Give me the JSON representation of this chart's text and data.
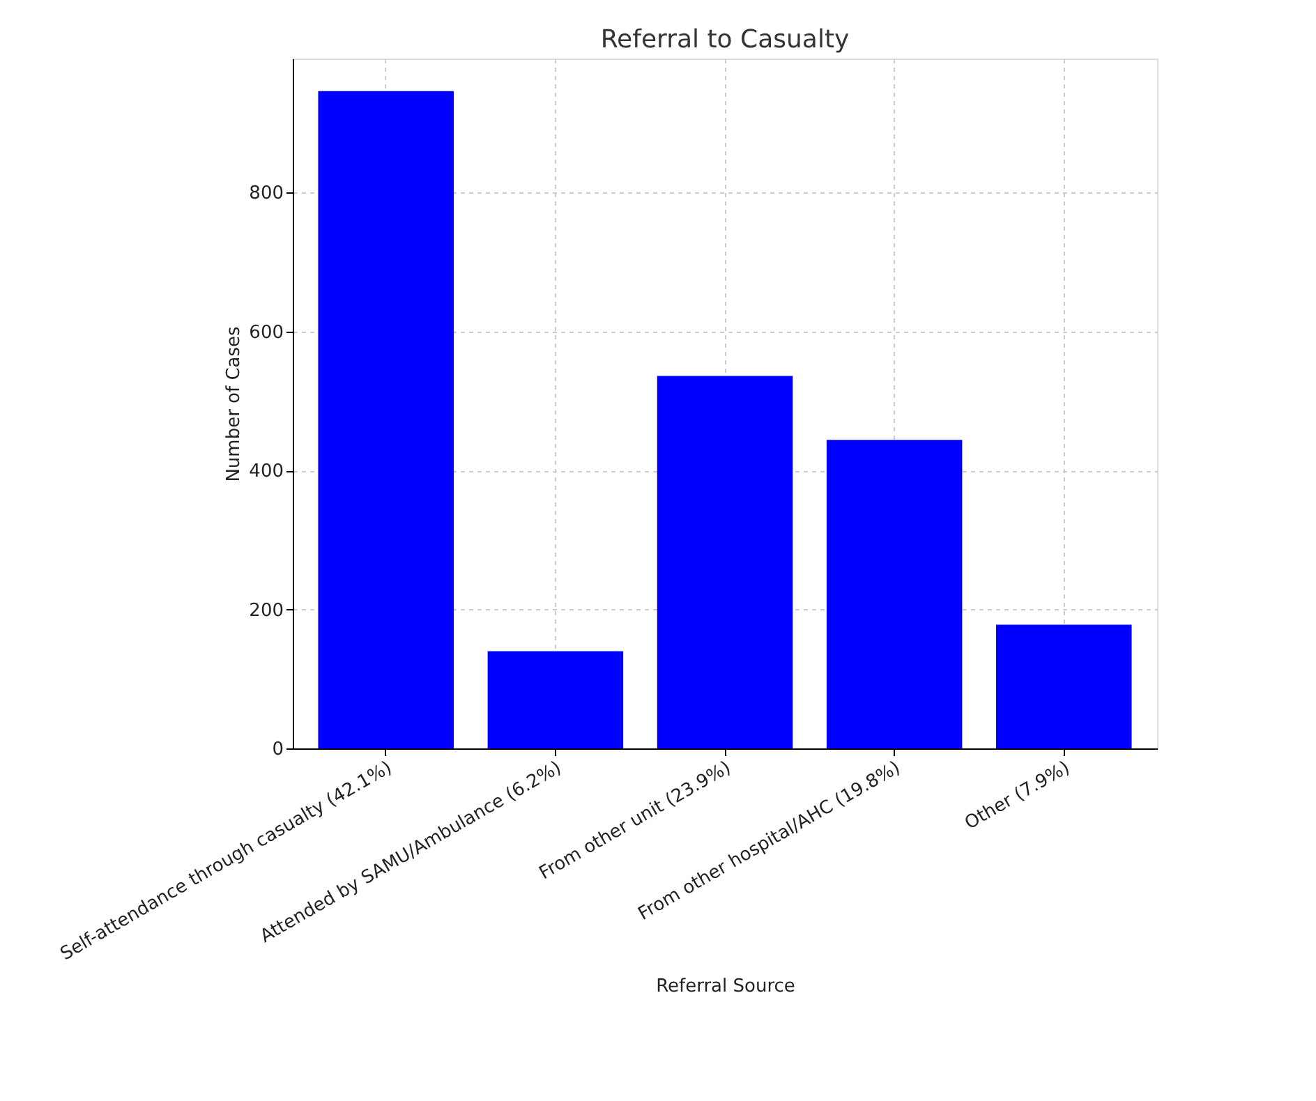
{
  "chart_data": {
    "type": "bar",
    "title": "Referral to Casualty",
    "xlabel": "Referral Source",
    "ylabel": "Number of Cases",
    "categories": [
      "Self-attendance through casualty (42.1%)",
      "Attended by SAMU/Ambulance (6.2%)",
      "From other unit (23.9%)",
      "From other hospital/AHC (19.8%)",
      "Other (7.9%)"
    ],
    "values": [
      946,
      140,
      536,
      444,
      178
    ],
    "color": "#0000ff",
    "ylim": [
      0,
      993
    ],
    "yticks": [
      0,
      200,
      400,
      600,
      800
    ],
    "grid": true
  }
}
